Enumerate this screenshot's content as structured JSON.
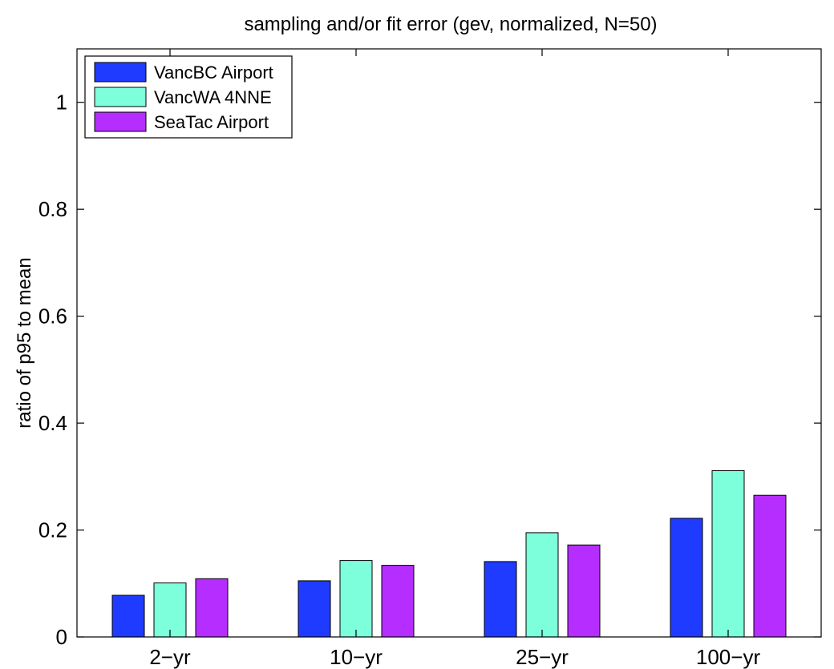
{
  "chart_data": {
    "type": "bar",
    "title": "sampling and/or fit error (gev, normalized, N=50)",
    "xlabel": "",
    "ylabel": "ratio of p95 to mean",
    "categories": [
      "2−yr",
      "10−yr",
      "25−yr",
      "100−yr"
    ],
    "ylim": [
      0,
      1.1
    ],
    "yticks": [
      0,
      0.2,
      0.4,
      0.6,
      0.8,
      1
    ],
    "ytick_labels": [
      "0",
      "0.2",
      "0.4",
      "0.6",
      "0.8",
      "1"
    ],
    "grid": false,
    "legend_position": "top-left",
    "series": [
      {
        "name": "VancBC Airport",
        "color": "#1f3bff",
        "values": [
          0.078,
          0.105,
          0.141,
          0.222
        ]
      },
      {
        "name": "VancWA 4NNE",
        "color": "#7dffdc",
        "values": [
          0.101,
          0.143,
          0.195,
          0.311
        ]
      },
      {
        "name": "SeaTac Airport",
        "color": "#b52eff",
        "values": [
          0.109,
          0.134,
          0.172,
          0.265
        ]
      }
    ]
  }
}
